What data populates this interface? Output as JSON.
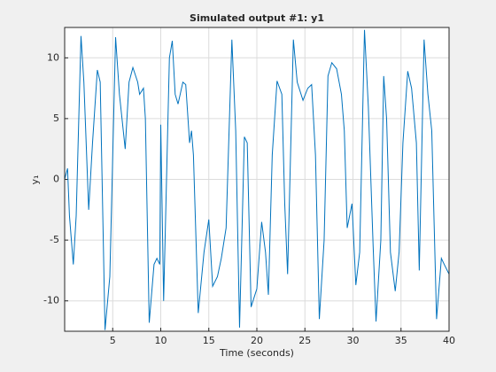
{
  "chart_data": {
    "type": "line",
    "title": "Simulated output #1: y1",
    "xlabel": "Time (seconds)",
    "ylabel": "y₁",
    "xlim": [
      0,
      40
    ],
    "ylim": [
      -12.5,
      12.5
    ],
    "xticks": [
      5,
      10,
      15,
      20,
      25,
      30,
      35,
      40
    ],
    "yticks": [
      -10,
      -5,
      0,
      5,
      10
    ],
    "grid": true,
    "x": [
      0,
      0.3,
      0.5,
      0.9,
      1.2,
      1.7,
      2.0,
      2.5,
      2.9,
      3.4,
      3.7,
      4.2,
      4.7,
      5.3,
      5.7,
      6.3,
      6.7,
      7.1,
      7.6,
      7.8,
      8.2,
      8.4,
      8.8,
      9.3,
      9.6,
      9.9,
      10.0,
      10.3,
      10.9,
      11.2,
      11.5,
      11.8,
      12.3,
      12.6,
      13.0,
      13.2,
      13.4,
      13.9,
      14.5,
      15.0,
      15.4,
      15.9,
      16.3,
      16.8,
      17.4,
      17.8,
      18.2,
      18.7,
      19.0,
      19.4,
      20.0,
      20.5,
      20.9,
      21.2,
      21.6,
      22.1,
      22.6,
      22.9,
      23.2,
      23.8,
      24.2,
      24.8,
      25.3,
      25.7,
      26.1,
      26.5,
      27.0,
      27.4,
      27.8,
      28.3,
      28.8,
      29.1,
      29.4,
      29.9,
      30.3,
      30.7,
      31.2,
      31.6,
      32.1,
      32.4,
      32.9,
      33.2,
      33.5,
      33.9,
      34.4,
      34.8,
      35.2,
      35.7,
      36.1,
      36.6,
      36.9,
      37.4,
      37.8,
      38.2,
      38.7,
      39.2,
      39.5,
      40.0
    ],
    "series": [
      {
        "name": "y1",
        "color": "#0072bd",
        "values": [
          0,
          0.9,
          -3,
          -7,
          -3,
          11.8,
          8,
          -2.5,
          3,
          9,
          8,
          -12.4,
          -8,
          11.7,
          7,
          2.5,
          8,
          9.2,
          8,
          7,
          7.5,
          5,
          -11.8,
          -7,
          -6.5,
          -7,
          4.5,
          -10,
          10,
          11.4,
          7,
          6.2,
          8,
          7.8,
          3,
          4,
          2,
          -11,
          -6,
          -3.3,
          -8.8,
          -8,
          -6.5,
          -4,
          11.5,
          4,
          -12.2,
          3.5,
          3,
          -10.5,
          -9,
          -3.5,
          -6,
          -9.5,
          2,
          8.1,
          7,
          -2,
          -7.8,
          11.5,
          8,
          6.5,
          7.5,
          7.8,
          2,
          -11.5,
          -5,
          8.5,
          9.6,
          9.1,
          7,
          4,
          -4,
          -2,
          -8.7,
          -6,
          12.3,
          6,
          -5.5,
          -11.7,
          -5,
          8.5,
          5,
          -6,
          -9.2,
          -6,
          3,
          8.9,
          7.5,
          3,
          -7.5,
          11.5,
          7,
          4,
          -11.5,
          -6.5,
          -7,
          -7.8
        ]
      }
    ]
  }
}
